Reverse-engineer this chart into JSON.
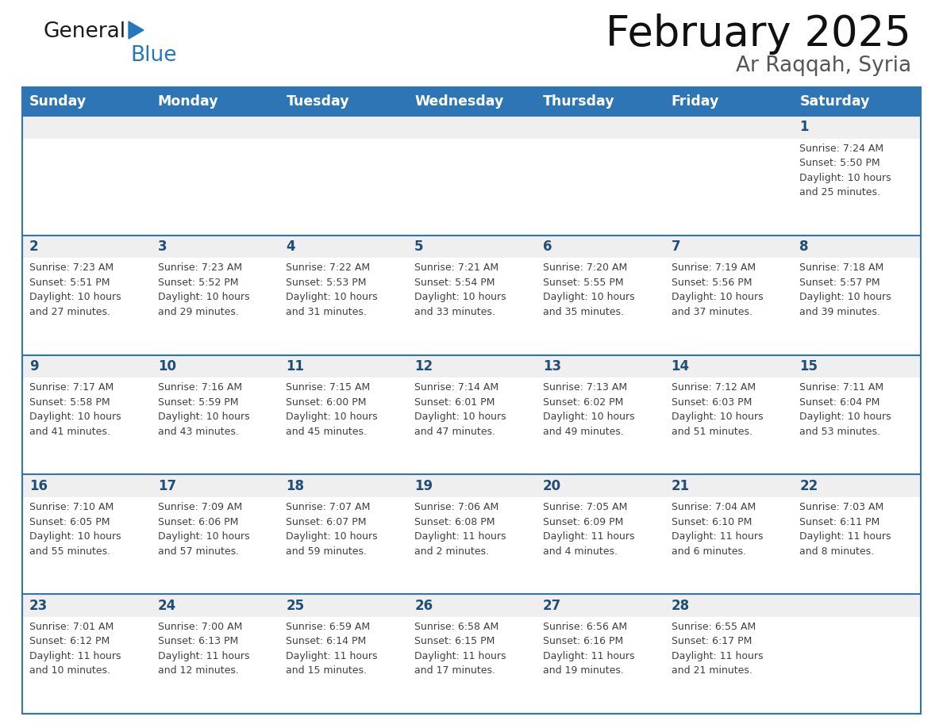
{
  "title": "February 2025",
  "subtitle": "Ar Raqqah, Syria",
  "header_bg": "#2E75B6",
  "header_text_color": "#FFFFFF",
  "days_of_week": [
    "Sunday",
    "Monday",
    "Tuesday",
    "Wednesday",
    "Thursday",
    "Friday",
    "Saturday"
  ],
  "cell_bg": "#EFEFEF",
  "cell_bg_white": "#FFFFFF",
  "cell_border_color": "#2E75B6",
  "text_color_day": "#1F4E79",
  "text_color_info": "#404040",
  "calendar": [
    [
      null,
      null,
      null,
      null,
      null,
      null,
      {
        "day": 1,
        "sunrise": "7:24 AM",
        "sunset": "5:50 PM",
        "daylight": "10 hours\nand 25 minutes."
      }
    ],
    [
      {
        "day": 2,
        "sunrise": "7:23 AM",
        "sunset": "5:51 PM",
        "daylight": "10 hours\nand 27 minutes."
      },
      {
        "day": 3,
        "sunrise": "7:23 AM",
        "sunset": "5:52 PM",
        "daylight": "10 hours\nand 29 minutes."
      },
      {
        "day": 4,
        "sunrise": "7:22 AM",
        "sunset": "5:53 PM",
        "daylight": "10 hours\nand 31 minutes."
      },
      {
        "day": 5,
        "sunrise": "7:21 AM",
        "sunset": "5:54 PM",
        "daylight": "10 hours\nand 33 minutes."
      },
      {
        "day": 6,
        "sunrise": "7:20 AM",
        "sunset": "5:55 PM",
        "daylight": "10 hours\nand 35 minutes."
      },
      {
        "day": 7,
        "sunrise": "7:19 AM",
        "sunset": "5:56 PM",
        "daylight": "10 hours\nand 37 minutes."
      },
      {
        "day": 8,
        "sunrise": "7:18 AM",
        "sunset": "5:57 PM",
        "daylight": "10 hours\nand 39 minutes."
      }
    ],
    [
      {
        "day": 9,
        "sunrise": "7:17 AM",
        "sunset": "5:58 PM",
        "daylight": "10 hours\nand 41 minutes."
      },
      {
        "day": 10,
        "sunrise": "7:16 AM",
        "sunset": "5:59 PM",
        "daylight": "10 hours\nand 43 minutes."
      },
      {
        "day": 11,
        "sunrise": "7:15 AM",
        "sunset": "6:00 PM",
        "daylight": "10 hours\nand 45 minutes."
      },
      {
        "day": 12,
        "sunrise": "7:14 AM",
        "sunset": "6:01 PM",
        "daylight": "10 hours\nand 47 minutes."
      },
      {
        "day": 13,
        "sunrise": "7:13 AM",
        "sunset": "6:02 PM",
        "daylight": "10 hours\nand 49 minutes."
      },
      {
        "day": 14,
        "sunrise": "7:12 AM",
        "sunset": "6:03 PM",
        "daylight": "10 hours\nand 51 minutes."
      },
      {
        "day": 15,
        "sunrise": "7:11 AM",
        "sunset": "6:04 PM",
        "daylight": "10 hours\nand 53 minutes."
      }
    ],
    [
      {
        "day": 16,
        "sunrise": "7:10 AM",
        "sunset": "6:05 PM",
        "daylight": "10 hours\nand 55 minutes."
      },
      {
        "day": 17,
        "sunrise": "7:09 AM",
        "sunset": "6:06 PM",
        "daylight": "10 hours\nand 57 minutes."
      },
      {
        "day": 18,
        "sunrise": "7:07 AM",
        "sunset": "6:07 PM",
        "daylight": "10 hours\nand 59 minutes."
      },
      {
        "day": 19,
        "sunrise": "7:06 AM",
        "sunset": "6:08 PM",
        "daylight": "11 hours\nand 2 minutes."
      },
      {
        "day": 20,
        "sunrise": "7:05 AM",
        "sunset": "6:09 PM",
        "daylight": "11 hours\nand 4 minutes."
      },
      {
        "day": 21,
        "sunrise": "7:04 AM",
        "sunset": "6:10 PM",
        "daylight": "11 hours\nand 6 minutes."
      },
      {
        "day": 22,
        "sunrise": "7:03 AM",
        "sunset": "6:11 PM",
        "daylight": "11 hours\nand 8 minutes."
      }
    ],
    [
      {
        "day": 23,
        "sunrise": "7:01 AM",
        "sunset": "6:12 PM",
        "daylight": "11 hours\nand 10 minutes."
      },
      {
        "day": 24,
        "sunrise": "7:00 AM",
        "sunset": "6:13 PM",
        "daylight": "11 hours\nand 12 minutes."
      },
      {
        "day": 25,
        "sunrise": "6:59 AM",
        "sunset": "6:14 PM",
        "daylight": "11 hours\nand 15 minutes."
      },
      {
        "day": 26,
        "sunrise": "6:58 AM",
        "sunset": "6:15 PM",
        "daylight": "11 hours\nand 17 minutes."
      },
      {
        "day": 27,
        "sunrise": "6:56 AM",
        "sunset": "6:16 PM",
        "daylight": "11 hours\nand 19 minutes."
      },
      {
        "day": 28,
        "sunrise": "6:55 AM",
        "sunset": "6:17 PM",
        "daylight": "11 hours\nand 21 minutes."
      },
      null
    ]
  ],
  "logo_general_color": "#1a1a1a",
  "logo_blue_color": "#2479BE",
  "fig_width": 11.88,
  "fig_height": 9.18,
  "dpi": 100
}
